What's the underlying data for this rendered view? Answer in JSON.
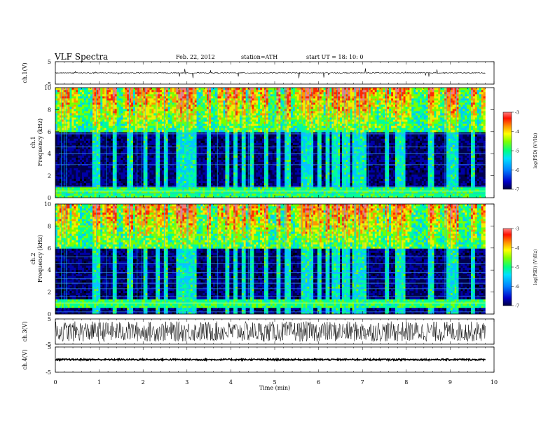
{
  "header": {
    "title": "VLF  Spectra",
    "date": "Feb. 22, 2012",
    "station": "station=ATH",
    "start": "start  UT =    18: 10: 0"
  },
  "chart_data": {
    "type": "heatmap",
    "xlabel": "Time  (min)",
    "xlim": [
      0,
      10
    ],
    "xticks": [
      "0",
      "1",
      "2",
      "3",
      "4",
      "5",
      "6",
      "7",
      "8",
      "9",
      "10"
    ],
    "panels": [
      {
        "id": "ch1-voltage",
        "type": "line",
        "ylabel": "ch.1(V)",
        "ylim": [
          -5,
          5
        ],
        "yticks": [
          "5",
          "-5"
        ],
        "baseline_V": 0,
        "typical_amplitude_V": 0.5,
        "max_spike_V": 2.5
      },
      {
        "id": "ch1-spectrogram",
        "type": "heatmap",
        "ylabel": [
          "ch.1",
          "Frequency  (kHz)"
        ],
        "ylim": [
          0,
          10
        ],
        "yticks": [
          "0",
          "2",
          "4",
          "6",
          "8",
          "10"
        ],
        "colorbar": {
          "label": "log(PSD) (V²/Hz)",
          "range": [
            -7,
            -3
          ],
          "ticks": [
            "-3",
            "-4",
            "-5",
            "-6",
            "-7"
          ]
        },
        "noise_band_kHz": [
          0,
          1
        ],
        "bright_band_kHz": 0.6,
        "sferic_band_kHz": [
          6,
          10
        ],
        "tone_lines_kHz": [
          0.4,
          1.0,
          3.0,
          4.0,
          4.6,
          5.8
        ]
      },
      {
        "id": "ch2-spectrogram",
        "type": "heatmap",
        "ylabel": [
          "ch.2",
          "Frequency  (kHz)"
        ],
        "ylim": [
          0,
          10
        ],
        "yticks": [
          "0",
          "2",
          "4",
          "6",
          "8",
          "10"
        ],
        "colorbar": {
          "label": "log(PSD) (V²/Hz)",
          "range": [
            -7,
            -3
          ],
          "ticks": [
            "-3",
            "-4",
            "-5",
            "-6",
            "-7"
          ]
        },
        "noise_band_kHz": [
          0.5,
          1.3
        ],
        "bright_band_kHz": 1.0,
        "sferic_band_kHz": [
          6,
          10
        ],
        "tone_lines_kHz": [
          0.2,
          1.6,
          2.3,
          2.8,
          3.2,
          3.8,
          4.6,
          5.2
        ]
      },
      {
        "id": "ch3-voltage",
        "type": "line",
        "ylabel": "ch.3(V)",
        "ylim": [
          -5,
          5
        ],
        "yticks": [
          "5",
          "-5"
        ],
        "baseline_V": 0,
        "typical_amplitude_V": 4
      },
      {
        "id": "ch4-voltage",
        "type": "line",
        "ylabel": "ch.4(V)",
        "ylim": [
          -5,
          5
        ],
        "yticks": [
          "5",
          "-5"
        ],
        "baseline_V": 0,
        "typical_amplitude_V": 0.3
      }
    ],
    "colormap": [
      "#000000",
      "#00004a",
      "#0000a8",
      "#0060ff",
      "#00c8ff",
      "#00ff96",
      "#78ff00",
      "#f0f000",
      "#ff9600",
      "#ff2800",
      "#ff7878"
    ]
  }
}
